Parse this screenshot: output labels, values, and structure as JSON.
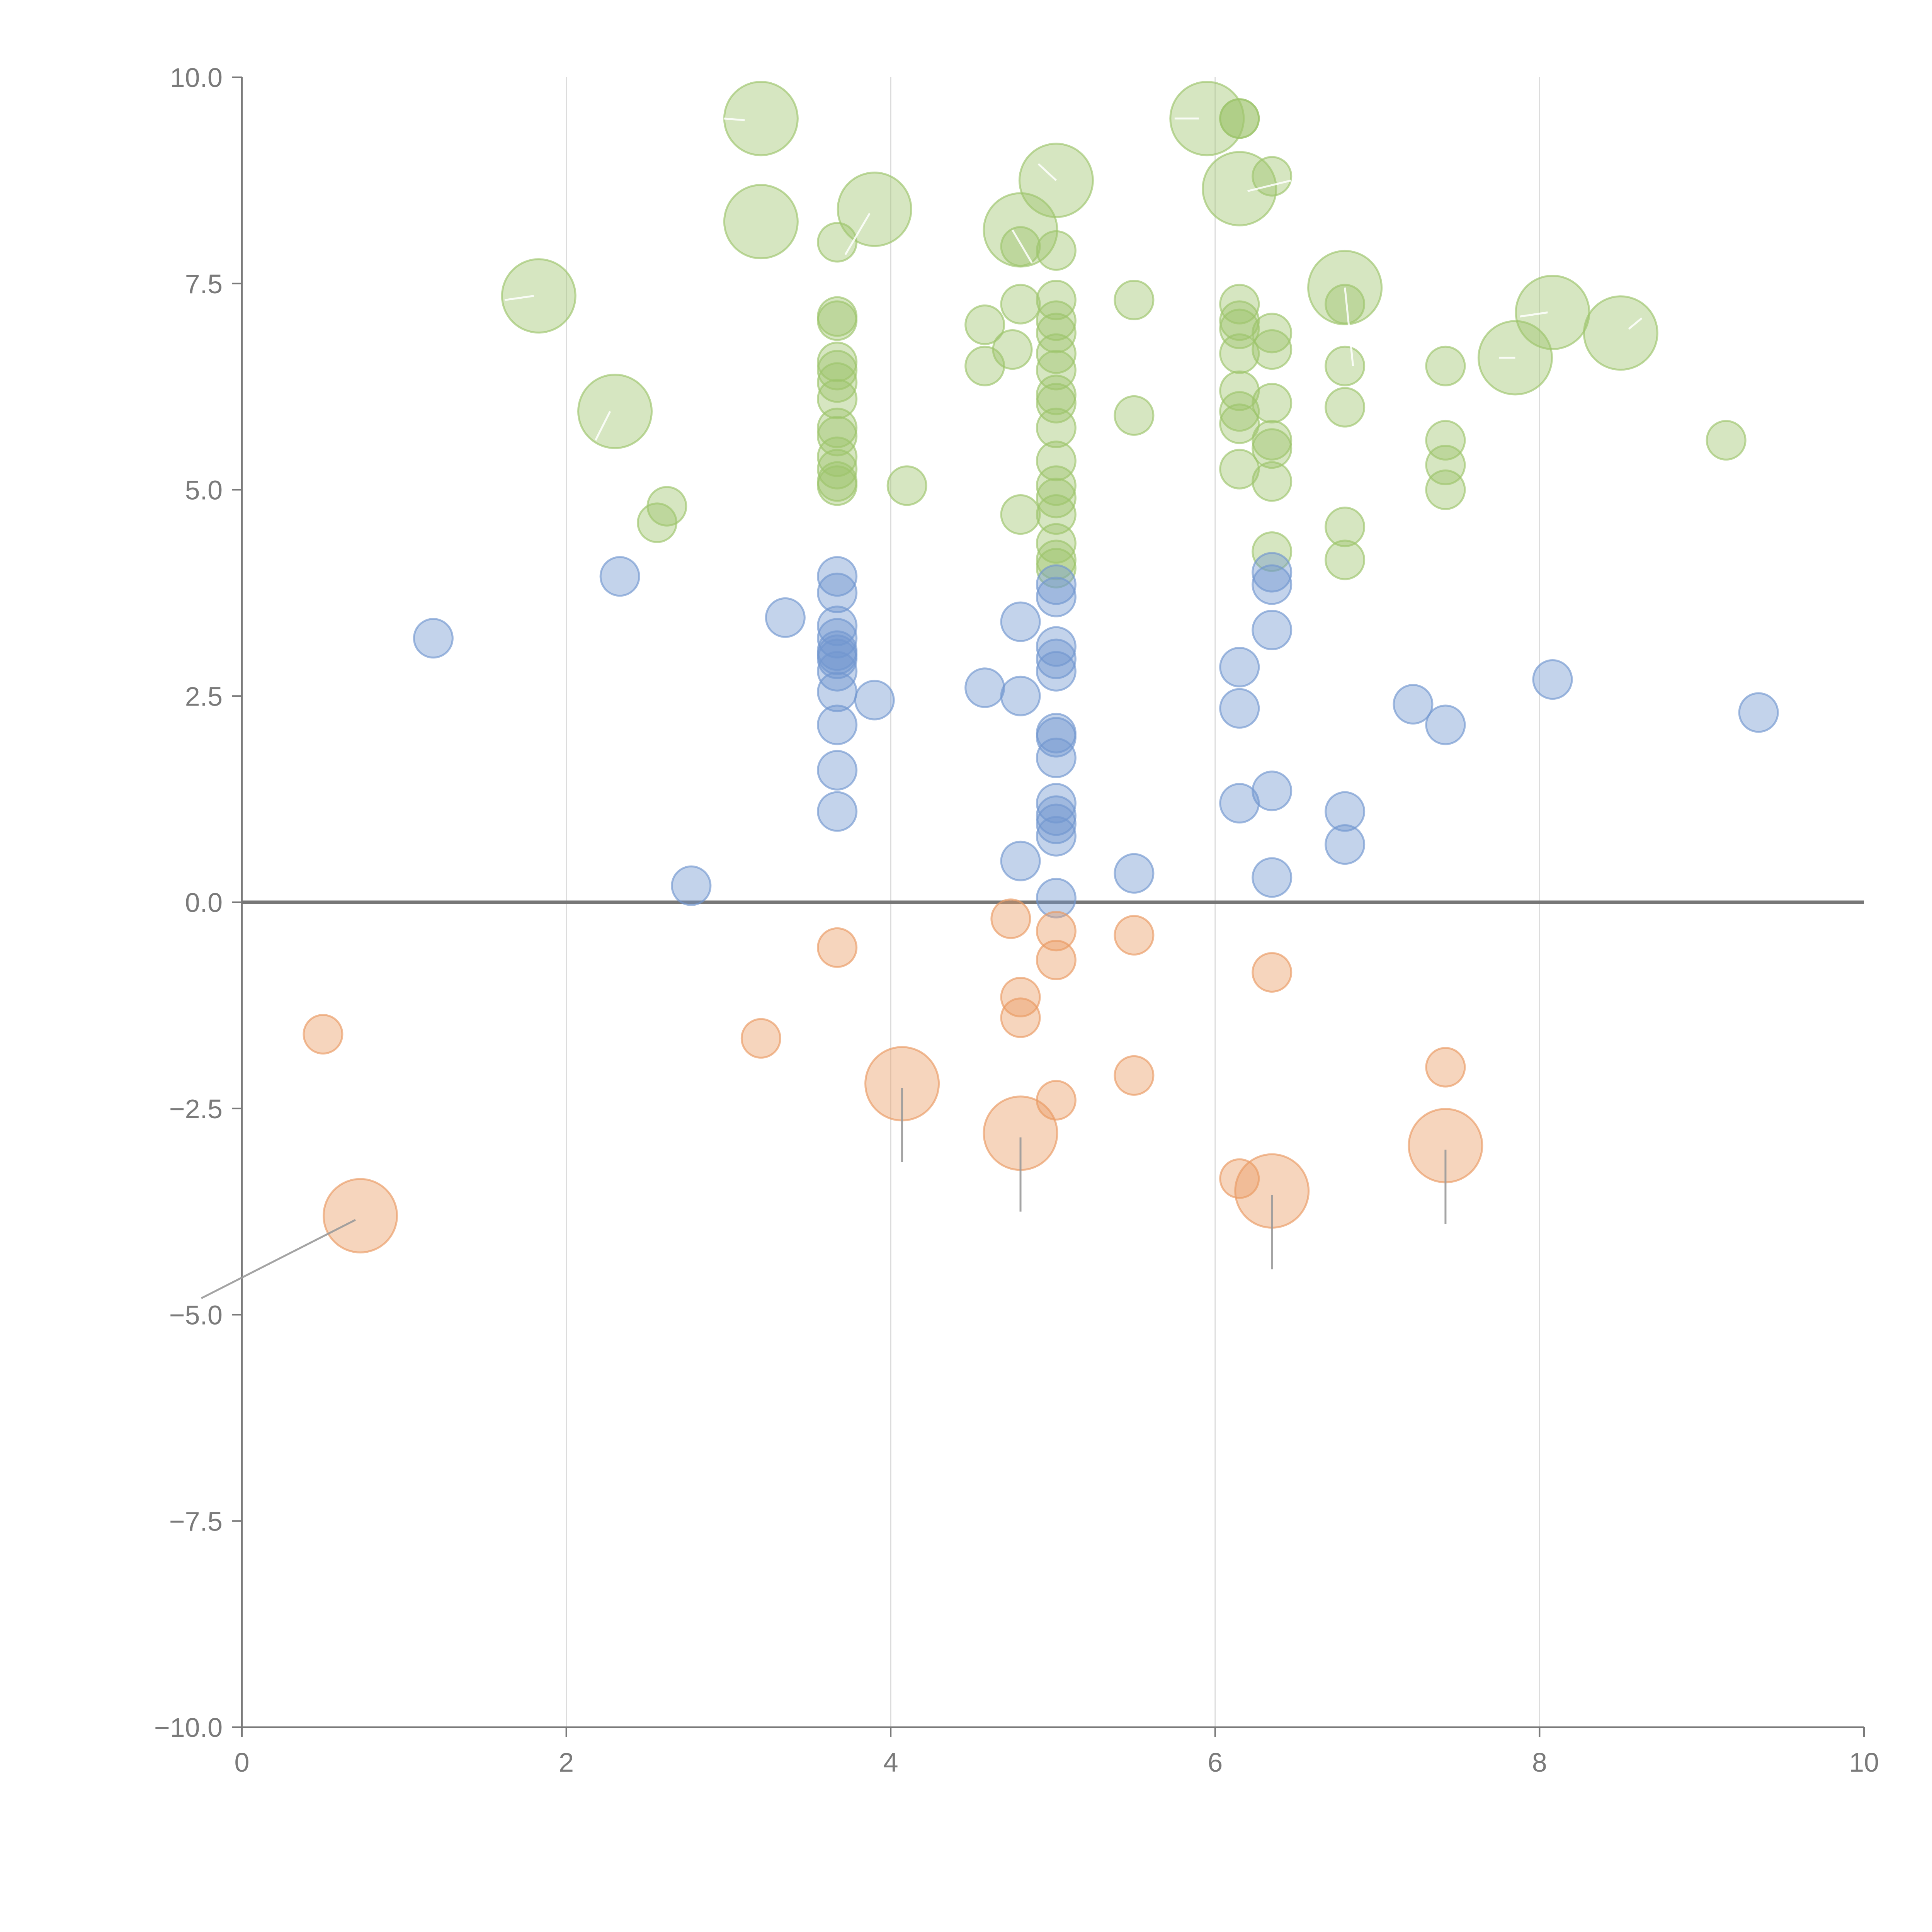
{
  "chart_data": {
    "type": "scatter",
    "title": "",
    "xlabel": "",
    "ylabel": "",
    "xlim": [
      0,
      10
    ],
    "ylim": [
      -10,
      10
    ],
    "x_ticks": [
      0,
      2,
      4,
      6,
      8,
      10
    ],
    "y_ticks": [
      10.0,
      7.5,
      5.0,
      2.5,
      0.0,
      -2.5,
      -5.0,
      -7.5,
      -10.0
    ],
    "x_tick_labels": [
      "0",
      "2",
      "4",
      "6",
      "8",
      "10"
    ],
    "y_tick_labels": [
      "10.0",
      "7.5",
      "5.0",
      "2.5",
      "0.0",
      "−2.5",
      "−5.0",
      "−7.5",
      "−10.0"
    ],
    "grid": "vertical lines at x ticks",
    "legend": "none",
    "colors": {
      "green": "#9dc46b",
      "blue": "#7196cf",
      "orange": "#e99a62",
      "axis": "#7a7a7a",
      "grid": "#dcdcdc",
      "zero": "#777777"
    },
    "series": [
      {
        "name": "green",
        "values": [
          [
            3.2,
            9.5,
            1
          ],
          [
            5.95,
            9.5,
            1
          ],
          [
            6.15,
            9.5,
            0
          ],
          [
            6.15,
            9.5,
            0
          ],
          [
            6.15,
            8.65,
            1
          ],
          [
            6.35,
            8.8,
            0
          ],
          [
            5.02,
            8.75,
            1
          ],
          [
            3.9,
            8.4,
            1
          ],
          [
            3.2,
            8.25,
            1
          ],
          [
            4.8,
            8.15,
            1
          ],
          [
            3.67,
            8.0,
            0
          ],
          [
            4.8,
            7.95,
            0
          ],
          [
            5.02,
            7.9,
            0
          ],
          [
            1.83,
            7.35,
            1
          ],
          [
            4.8,
            7.25,
            0
          ],
          [
            5.02,
            7.3,
            0
          ],
          [
            5.5,
            7.3,
            0
          ],
          [
            6.15,
            7.25,
            0
          ],
          [
            6.15,
            7.05,
            0
          ],
          [
            6.15,
            6.95,
            0
          ],
          [
            6.8,
            7.45,
            1
          ],
          [
            6.8,
            7.25,
            0
          ],
          [
            8.08,
            7.15,
            1
          ],
          [
            8.5,
            6.9,
            1
          ],
          [
            7.85,
            6.6,
            1
          ],
          [
            3.67,
            7.1,
            0
          ],
          [
            3.67,
            7.05,
            0
          ],
          [
            4.58,
            7.0,
            0
          ],
          [
            5.02,
            7.05,
            0
          ],
          [
            5.02,
            6.9,
            0
          ],
          [
            6.35,
            6.9,
            0
          ],
          [
            4.75,
            6.7,
            0
          ],
          [
            5.02,
            6.65,
            0
          ],
          [
            6.15,
            6.65,
            0
          ],
          [
            6.35,
            6.7,
            0
          ],
          [
            3.67,
            6.55,
            0
          ],
          [
            3.67,
            6.45,
            0
          ],
          [
            3.67,
            6.3,
            0
          ],
          [
            4.58,
            6.5,
            0
          ],
          [
            5.02,
            6.45,
            0
          ],
          [
            6.8,
            6.5,
            0
          ],
          [
            7.42,
            6.5,
            0
          ],
          [
            3.67,
            6.1,
            0
          ],
          [
            5.02,
            6.15,
            0
          ],
          [
            5.02,
            6.05,
            0
          ],
          [
            6.15,
            6.2,
            0
          ],
          [
            6.35,
            6.05,
            0
          ],
          [
            6.8,
            6.0,
            0
          ],
          [
            2.3,
            5.95,
            1
          ],
          [
            5.5,
            5.9,
            0
          ],
          [
            6.15,
            5.95,
            0
          ],
          [
            6.15,
            5.8,
            0
          ],
          [
            3.67,
            5.75,
            0
          ],
          [
            3.67,
            5.65,
            0
          ],
          [
            5.02,
            5.75,
            0
          ],
          [
            6.35,
            5.6,
            0
          ],
          [
            6.35,
            5.5,
            0
          ],
          [
            7.42,
            5.6,
            0
          ],
          [
            9.15,
            5.6,
            0
          ],
          [
            3.67,
            5.4,
            0
          ],
          [
            3.67,
            5.25,
            0
          ],
          [
            5.02,
            5.35,
            0
          ],
          [
            6.15,
            5.25,
            0
          ],
          [
            7.42,
            5.3,
            0
          ],
          [
            3.67,
            5.1,
            0
          ],
          [
            3.67,
            5.05,
            0
          ],
          [
            4.1,
            5.05,
            0
          ],
          [
            5.02,
            5.05,
            0
          ],
          [
            6.35,
            5.1,
            0
          ],
          [
            7.42,
            5.0,
            0
          ],
          [
            5.02,
            4.9,
            0
          ],
          [
            2.62,
            4.8,
            0
          ],
          [
            2.56,
            4.6,
            0
          ],
          [
            4.8,
            4.7,
            0
          ],
          [
            5.02,
            4.7,
            0
          ],
          [
            6.8,
            4.55,
            0
          ],
          [
            5.02,
            4.35,
            0
          ],
          [
            6.35,
            4.25,
            0
          ],
          [
            5.02,
            4.15,
            0
          ],
          [
            5.02,
            4.05,
            0
          ],
          [
            6.8,
            4.15,
            0
          ]
        ]
      },
      {
        "name": "blue",
        "values": [
          [
            2.33,
            3.95,
            0
          ],
          [
            3.67,
            3.95,
            0
          ],
          [
            3.67,
            3.75,
            0
          ],
          [
            5.02,
            3.85,
            0
          ],
          [
            5.02,
            3.7,
            0
          ],
          [
            6.35,
            4.0,
            0
          ],
          [
            6.35,
            3.85,
            0
          ],
          [
            1.18,
            3.2,
            0
          ],
          [
            3.35,
            3.45,
            0
          ],
          [
            4.8,
            3.4,
            0
          ],
          [
            3.67,
            3.35,
            0
          ],
          [
            3.67,
            3.2,
            0
          ],
          [
            3.67,
            3.05,
            0
          ],
          [
            3.67,
            3.0,
            0
          ],
          [
            3.67,
            2.95,
            0
          ],
          [
            3.67,
            2.8,
            0
          ],
          [
            5.02,
            3.1,
            0
          ],
          [
            5.02,
            2.95,
            0
          ],
          [
            5.02,
            2.8,
            0
          ],
          [
            6.35,
            3.3,
            0
          ],
          [
            6.15,
            2.85,
            0
          ],
          [
            3.67,
            2.55,
            0
          ],
          [
            3.9,
            2.45,
            0
          ],
          [
            4.58,
            2.6,
            0
          ],
          [
            4.8,
            2.5,
            0
          ],
          [
            7.22,
            2.4,
            0
          ],
          [
            8.08,
            2.7,
            0
          ],
          [
            9.35,
            2.3,
            0
          ],
          [
            6.15,
            2.35,
            0
          ],
          [
            3.67,
            2.15,
            0
          ],
          [
            5.02,
            2.05,
            0
          ],
          [
            5.02,
            2.0,
            0
          ],
          [
            7.42,
            2.15,
            0
          ],
          [
            5.02,
            1.75,
            0
          ],
          [
            3.67,
            1.6,
            0
          ],
          [
            6.35,
            1.35,
            0
          ],
          [
            5.02,
            1.2,
            0
          ],
          [
            6.15,
            1.2,
            0
          ],
          [
            3.67,
            1.1,
            0
          ],
          [
            5.02,
            1.05,
            0
          ],
          [
            5.02,
            0.95,
            0
          ],
          [
            6.8,
            1.1,
            0
          ],
          [
            5.02,
            0.8,
            0
          ],
          [
            6.8,
            0.7,
            0
          ],
          [
            4.8,
            0.5,
            0
          ],
          [
            2.77,
            0.2,
            0
          ],
          [
            5.5,
            0.35,
            0
          ],
          [
            6.35,
            0.3,
            0
          ],
          [
            5.02,
            0.05,
            0
          ]
        ]
      },
      {
        "name": "orange",
        "values": [
          [
            4.74,
            -0.2,
            0
          ],
          [
            5.02,
            -0.35,
            0
          ],
          [
            5.5,
            -0.4,
            0
          ],
          [
            3.67,
            -0.55,
            0
          ],
          [
            5.02,
            -0.7,
            0
          ],
          [
            6.35,
            -0.85,
            0
          ],
          [
            4.8,
            -1.15,
            0
          ],
          [
            4.8,
            -1.4,
            0
          ],
          [
            0.5,
            -1.6,
            0
          ],
          [
            3.2,
            -1.65,
            0
          ],
          [
            7.42,
            -2.0,
            0
          ],
          [
            5.5,
            -2.1,
            0
          ],
          [
            5.02,
            -2.4,
            0
          ],
          [
            4.07,
            -2.2,
            1
          ],
          [
            4.8,
            -2.8,
            1
          ],
          [
            7.42,
            -2.95,
            1
          ],
          [
            6.15,
            -3.35,
            0
          ],
          [
            6.35,
            -3.5,
            1
          ],
          [
            0.73,
            -3.8,
            1
          ]
        ]
      }
    ],
    "annotation_leaders": [
      {
        "series": "green",
        "from": [
          2.97,
          9.5
        ],
        "to": [
          3.1,
          9.48
        ]
      },
      {
        "series": "green",
        "from": [
          5.75,
          9.5
        ],
        "to": [
          5.9,
          9.5
        ]
      },
      {
        "series": "green",
        "from": [
          6.2,
          8.62
        ],
        "to": [
          6.47,
          8.75
        ]
      },
      {
        "series": "green",
        "from": [
          4.91,
          8.95
        ],
        "to": [
          5.02,
          8.75
        ]
      },
      {
        "series": "green",
        "from": [
          3.72,
          7.85
        ],
        "to": [
          3.87,
          8.35
        ]
      },
      {
        "series": "green",
        "from": [
          4.87,
          7.75
        ],
        "to": [
          4.75,
          8.15
        ]
      },
      {
        "series": "green",
        "from": [
          1.62,
          7.3
        ],
        "to": [
          1.8,
          7.35
        ]
      },
      {
        "series": "green",
        "from": [
          6.8,
          7.45
        ],
        "to": [
          6.85,
          6.5
        ]
      },
      {
        "series": "green",
        "from": [
          8.05,
          7.15
        ],
        "to": [
          7.88,
          7.1
        ]
      },
      {
        "series": "green",
        "from": [
          8.63,
          7.08
        ],
        "to": [
          8.55,
          6.95
        ]
      },
      {
        "series": "green",
        "from": [
          7.85,
          6.6
        ],
        "to": [
          7.75,
          6.6
        ]
      },
      {
        "series": "green",
        "from": [
          2.27,
          5.95
        ],
        "to": [
          2.18,
          5.6
        ]
      },
      {
        "series": "orange",
        "from": [
          4.07,
          -2.25
        ],
        "to": [
          4.07,
          -3.15
        ]
      },
      {
        "series": "orange",
        "from": [
          4.8,
          -2.85
        ],
        "to": [
          4.8,
          -3.75
        ]
      },
      {
        "series": "orange",
        "from": [
          7.42,
          -3.0
        ],
        "to": [
          7.42,
          -3.9
        ]
      },
      {
        "series": "orange",
        "from": [
          6.35,
          -3.55
        ],
        "to": [
          6.35,
          -4.45
        ]
      },
      {
        "series": "orange",
        "from": [
          0.7,
          -3.85
        ],
        "to": [
          -0.25,
          -4.8
        ]
      }
    ]
  }
}
